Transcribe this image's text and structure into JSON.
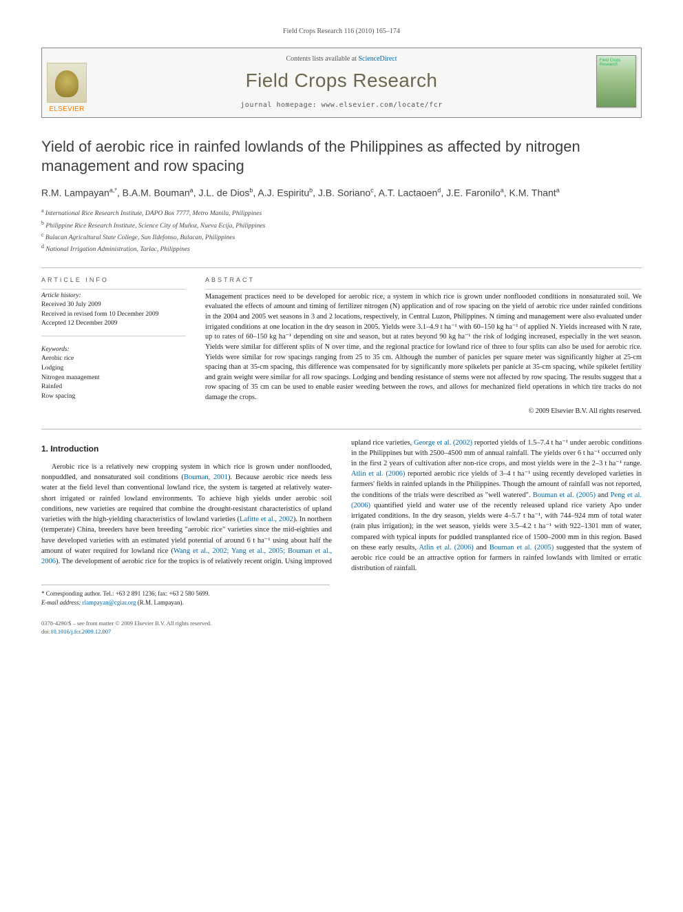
{
  "running_head": "Field Crops Research 116 (2010) 165–174",
  "masthead": {
    "contents_prefix": "Contents lists available at ",
    "contents_link": "ScienceDirect",
    "journal_name": "Field Crops Research",
    "homepage_prefix": "journal homepage: ",
    "homepage_url": "www.elsevier.com/locate/fcr",
    "publisher_logo": "ELSEVIER",
    "cover_label": "Field Crops Research"
  },
  "article": {
    "title": "Yield of aerobic rice in rainfed lowlands of the Philippines as affected by nitrogen management and row spacing",
    "authors_html": "R.M. Lampayan<sup>a,*</sup>, B.A.M. Bouman<sup>a</sup>, J.L. de Dios<sup>b</sup>, A.J. Espiritu<sup>b</sup>, J.B. Soriano<sup>c</sup>, A.T. Lactaoen<sup>d</sup>, J.E. Faronilo<sup>a</sup>, K.M. Thant<sup>a</sup>",
    "affiliations": [
      {
        "sup": "a",
        "text": "International Rice Research Institute, DAPO Box 7777, Metro Manila, Philippines"
      },
      {
        "sup": "b",
        "text": "Philippine Rice Research Institute, Science City of Muñoz, Nueva Ecija, Philippines"
      },
      {
        "sup": "c",
        "text": "Bulacan Agricultural State College, San Ildefonso, Bulacan, Philippines"
      },
      {
        "sup": "d",
        "text": "National Irrigation Administration, Tarlac, Philippines"
      }
    ]
  },
  "article_info": {
    "heading": "ARTICLE INFO",
    "history_label": "Article history:",
    "history": [
      "Received 30 July 2009",
      "Received in revised form 10 December 2009",
      "Accepted 12 December 2009"
    ],
    "keywords_label": "Keywords:",
    "keywords": [
      "Aerobic rice",
      "Lodging",
      "Nitrogen management",
      "Rainfed",
      "Row spacing"
    ]
  },
  "abstract": {
    "heading": "ABSTRACT",
    "text": "Management practices need to be developed for aerobic rice, a system in which rice is grown under nonflooded conditions in nonsaturated soil. We evaluated the effects of amount and timing of fertilizer nitrogen (N) application and of row spacing on the yield of aerobic rice under rainfed conditions in the 2004 and 2005 wet seasons in 3 and 2 locations, respectively, in Central Luzon, Philippines. N timing and management were also evaluated under irrigated conditions at one location in the dry season in 2005. Yields were 3.1–4.9 t ha⁻¹ with 60–150 kg ha⁻¹ of applied N. Yields increased with N rate, up to rates of 60–150 kg ha⁻¹ depending on site and season, but at rates beyond 90 kg ha⁻¹ the risk of lodging increased, especially in the wet season. Yields were similar for different splits of N over time, and the regional practice for lowland rice of three to four splits can also be used for aerobic rice. Yields were similar for row spacings ranging from 25 to 35 cm. Although the number of panicles per square meter was significantly higher at 25-cm spacing than at 35-cm spacing, this difference was compensated for by significantly more spikelets per panicle at 35-cm spacing, while spikelet fertility and grain weight were similar for all row spacings. Lodging and bending resistance of stems were not affected by row spacing. The results suggest that a row spacing of 35 cm can be used to enable easier weeding between the rows, and allows for mechanized field operations in which tire tracks do not damage the crops.",
    "copyright": "© 2009 Elsevier B.V. All rights reserved."
  },
  "body": {
    "section1_heading": "1. Introduction",
    "p1a": "Aerobic rice is a relatively new cropping system in which rice is grown under nonflooded, nonpuddled, and nonsaturated soil conditions (",
    "p1_link1": "Bouman, 2001",
    "p1b": "). Because aerobic rice needs less water at the field level than conventional lowland rice, the system is targeted at relatively water-short irrigated or rainfed lowland environments. To achieve high yields under aerobic soil conditions, new varieties are required that combine the drought-resistant characteristics of upland varieties with the high-yielding characteristics of lowland varieties (",
    "p1_link2": "Lafitte et al., 2002",
    "p1c": "). In northern (temperate) China, breeders have been breeding \"aerobic rice\" varieties since the mid-eighties and have developed varieties with an estimated yield potential of around 6 t ha⁻¹ using about half the amount of water required for lowland rice (",
    "p1_link3": "Wang et al., 2002; Yang et al., 2005; Bouman et al., 2006",
    "p1d": "). The development of aerobic rice ",
    "p1e": "for the tropics is of relatively recent origin. Using improved upland rice varieties, ",
    "p1_link4": "George et al. (2002)",
    "p1f": " reported yields of 1.5–7.4 t ha⁻¹ under aerobic conditions in the Philippines but with 2500–4500 mm of annual rainfall. The yields over 6 t ha⁻¹ occurred only in the first 2 years of cultivation after non-rice crops, and most yields were in the 2–3 t ha⁻¹ range. ",
    "p1_link5": "Atlin et al. (2006)",
    "p1g": " reported aerobic rice yields of 3–4 t ha⁻¹ using recently developed varieties in farmers' fields in rainfed uplands in the Philippines. Though the amount of rainfall was not reported, the conditions of the trials were described as \"well watered\". ",
    "p1_link6": "Bouman et al. (2005)",
    "p1h": " and ",
    "p1_link7": "Peng et al. (2006)",
    "p1i": " quantified yield and water use of the recently released upland rice variety Apo under irrigated conditions. In the dry season, yields were 4–5.7 t ha⁻¹, with 744–924 mm of total water (rain plus irrigation); in the wet season, yields were 3.5–4.2 t ha⁻¹ with 922–1301 mm of water, compared with typical inputs for puddled transplanted rice of 1500–2000 mm in this region. Based on these early results, ",
    "p1_link8": "Atlin et al. (2006)",
    "p1j": " and ",
    "p1_link9": "Bouman et al. (2005)",
    "p1k": " suggested that the system of aerobic rice could be an attractive option for farmers in rainfed lowlands with limited or erratic distribution of rainfall."
  },
  "footnotes": {
    "corr": "* Corresponding author. Tel.: +63 2 891 1236; fax: +63 2 580 5699.",
    "email_label": "E-mail address: ",
    "email": "rlampayan@cgiar.org",
    "email_tail": " (R.M. Lampayan)."
  },
  "bottom": {
    "issn_line": "0378-4290/$ – see front matter © 2009 Elsevier B.V. All rights reserved.",
    "doi_label": "doi:",
    "doi": "10.1016/j.fcr.2009.12.007"
  },
  "colors": {
    "link": "#0066aa",
    "accent": "#6e6650",
    "brand_orange": "#ff7a00"
  }
}
